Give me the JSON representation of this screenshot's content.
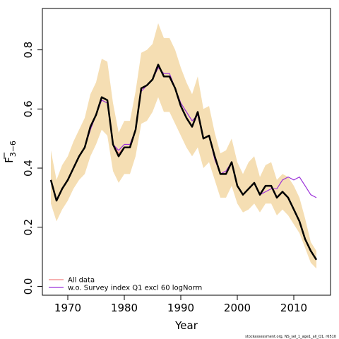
{
  "chart_data": {
    "type": "line",
    "xlabel": "Year",
    "ylabel": "F̄3−6",
    "ylabel_main": "F",
    "ylabel_sub": "3−6",
    "xlim": [
      1965.5,
      2016.5
    ],
    "ylim": [
      -0.03,
      0.94
    ],
    "x_ticks": [
      1970,
      1980,
      1990,
      2000,
      2010
    ],
    "y_ticks": [
      0.0,
      0.2,
      0.4,
      0.6,
      0.8
    ],
    "x_tick_labels": [
      "1970",
      "1980",
      "1990",
      "2000",
      "2010"
    ],
    "y_tick_labels": [
      "0.0",
      "0.2",
      "0.4",
      "0.6",
      "0.8"
    ],
    "grid": false,
    "legend_position": "bottom-left",
    "band_color": "#f5deb3",
    "x": [
      1967,
      1968,
      1969,
      1970,
      1971,
      1972,
      1973,
      1974,
      1975,
      1976,
      1977,
      1978,
      1979,
      1980,
      1981,
      1982,
      1983,
      1984,
      1985,
      1986,
      1987,
      1988,
      1989,
      1990,
      1991,
      1992,
      1993,
      1994,
      1995,
      1996,
      1997,
      1998,
      1999,
      2000,
      2001,
      2002,
      2003,
      2004,
      2005,
      2006,
      2007,
      2008,
      2009,
      2010,
      2011,
      2012,
      2013,
      2014
    ],
    "band_upper": [
      0.46,
      0.36,
      0.41,
      0.44,
      0.49,
      0.53,
      0.57,
      0.65,
      0.69,
      0.77,
      0.76,
      0.62,
      0.52,
      0.56,
      0.56,
      0.66,
      0.79,
      0.8,
      0.82,
      0.89,
      0.84,
      0.84,
      0.8,
      0.74,
      0.69,
      0.65,
      0.71,
      0.6,
      0.61,
      0.52,
      0.45,
      0.46,
      0.5,
      0.42,
      0.38,
      0.42,
      0.44,
      0.37,
      0.41,
      0.42,
      0.36,
      0.38,
      0.37,
      0.34,
      0.3,
      0.23,
      0.15,
      0.12
    ],
    "band_lower": [
      0.28,
      0.22,
      0.26,
      0.29,
      0.33,
      0.36,
      0.38,
      0.44,
      0.48,
      0.53,
      0.51,
      0.39,
      0.35,
      0.38,
      0.38,
      0.44,
      0.55,
      0.56,
      0.59,
      0.64,
      0.59,
      0.59,
      0.55,
      0.51,
      0.47,
      0.44,
      0.47,
      0.4,
      0.42,
      0.36,
      0.3,
      0.3,
      0.34,
      0.28,
      0.25,
      0.26,
      0.28,
      0.25,
      0.28,
      0.28,
      0.24,
      0.26,
      0.24,
      0.21,
      0.18,
      0.13,
      0.08,
      0.06
    ],
    "series": [
      {
        "name": "All data",
        "color": "#f28080",
        "width": 1.2,
        "values": [
          0.36,
          0.29,
          0.33,
          0.36,
          0.4,
          0.44,
          0.47,
          0.54,
          0.58,
          0.64,
          0.63,
          0.48,
          0.45,
          0.47,
          0.47,
          0.53,
          0.67,
          0.68,
          0.7,
          0.75,
          0.71,
          0.71,
          0.67,
          0.61,
          0.57,
          0.54,
          0.59,
          0.5,
          0.51,
          0.44,
          0.38,
          0.38,
          0.42,
          0.34,
          0.31,
          0.33,
          0.35,
          0.31,
          0.34,
          0.34,
          0.3,
          0.32,
          0.3,
          0.26,
          0.22,
          0.16,
          0.12,
          0.09
        ]
      },
      {
        "name": "w.o. Survey index Q1 excl 60 logNorm",
        "color": "#9b30d9",
        "width": 1.2,
        "values": [
          0.36,
          0.29,
          0.33,
          0.36,
          0.4,
          0.44,
          0.47,
          0.53,
          0.58,
          0.63,
          0.62,
          0.48,
          0.46,
          0.48,
          0.48,
          0.53,
          0.66,
          0.68,
          0.7,
          0.74,
          0.72,
          0.72,
          0.67,
          0.62,
          0.59,
          0.56,
          0.58,
          0.5,
          0.51,
          0.43,
          0.38,
          0.39,
          0.42,
          0.34,
          0.31,
          0.33,
          0.35,
          0.31,
          0.32,
          0.33,
          0.33,
          0.36,
          0.37,
          0.36,
          0.37,
          0.34,
          0.31,
          0.3
        ]
      },
      {
        "name": "",
        "color": "#000000",
        "width": 2.5,
        "values": [
          0.36,
          0.29,
          0.33,
          0.36,
          0.4,
          0.44,
          0.47,
          0.54,
          0.58,
          0.64,
          0.63,
          0.48,
          0.44,
          0.47,
          0.47,
          0.53,
          0.67,
          0.68,
          0.7,
          0.75,
          0.71,
          0.71,
          0.67,
          0.61,
          0.57,
          0.54,
          0.59,
          0.5,
          0.51,
          0.44,
          0.38,
          0.38,
          0.42,
          0.34,
          0.31,
          0.33,
          0.35,
          0.31,
          0.34,
          0.34,
          0.3,
          0.32,
          0.3,
          0.26,
          0.22,
          0.16,
          0.12,
          0.09
        ]
      }
    ],
    "legend": [
      {
        "label": "All data",
        "color": "#f28080"
      },
      {
        "label": "w.o. Survey index Q1 excl 60 logNorm",
        "color": "#9b30d9"
      }
    ],
    "footer": "stockassessment.org, NS_sel_1_age1_all_Q1, r6510"
  }
}
